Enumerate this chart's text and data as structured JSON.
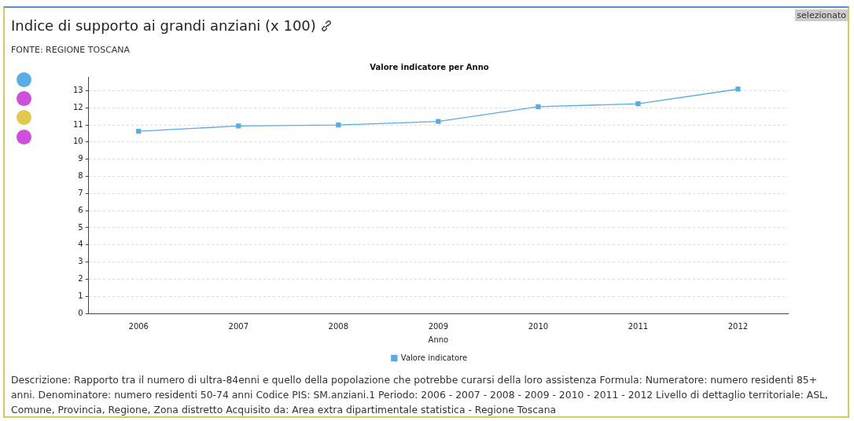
{
  "chart_data": {
    "type": "line",
    "title": "Indice di supporto ai grandi anziani (x 100)",
    "subtitle": "Valore indicatore per Anno",
    "xlabel": "Anno",
    "categories": [
      "2006",
      "2007",
      "2008",
      "2009",
      "2010",
      "2011",
      "2012"
    ],
    "series": [
      {
        "name": "Valore indicatore",
        "color": "#5aace0",
        "values": [
          10.63,
          10.94,
          11.0,
          11.2,
          12.06,
          12.24,
          13.09
        ]
      }
    ],
    "ylim": [
      0,
      13.8
    ],
    "yticks": [
      0,
      1,
      2,
      3,
      4,
      5,
      6,
      7,
      8,
      9,
      10,
      11,
      12,
      13
    ],
    "grid": "y",
    "legend": "bottom",
    "marker": "square",
    "line_style": "solid",
    "annotations": [
      "FONTE: REGIONE TOSCANA",
      "Descrizione: Rapporto tra il numero di ultra-84enni e quello della popolazione che potrebbe curarsi della loro assistenza Formula: Numeratore: numero residenti 85+ anni. Denominatore: numero residenti 50-74 anni Codice PIS: SM.anziani.1 Periodo: 2006 - 2007 - 2008 - 2009 - 2010 - 2011 - 2012 Livello di dettaglio territoriale: ASL, Comune, Provincia, Regione, Zona distretto Acquisito da: Area extra dipartimentale statistica - Regione Toscana",
      "selezionato"
    ]
  }
}
